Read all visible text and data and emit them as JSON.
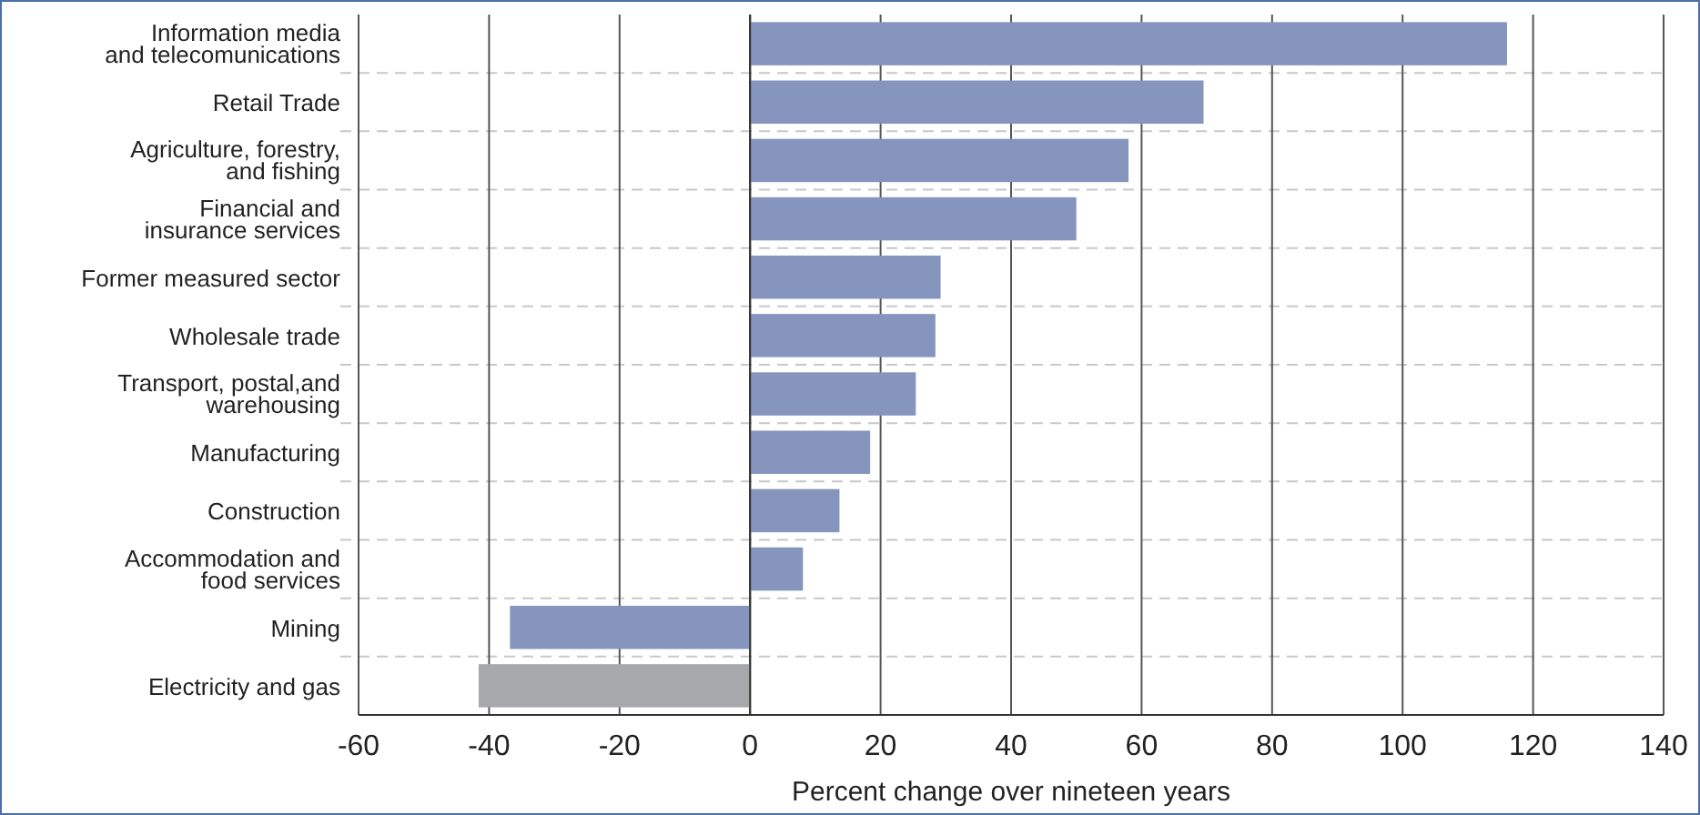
{
  "chart_data": {
    "type": "bar",
    "orientation": "horizontal",
    "xlabel": "Percent change over nineteen years",
    "categories": [
      "Information media\nand telecomunications",
      "Retail Trade",
      "Agriculture, forestry,\nand fishing",
      "Financial and\ninsurance services",
      "Former measured sector",
      "Wholesale trade",
      "Transport, postal,and\nwarehousing",
      "Manufacturing",
      "Construction",
      "Accommodation and\nfood services",
      "Mining",
      "Electricity and gas"
    ],
    "values": [
      116,
      69.5,
      58,
      50,
      29.2,
      28.4,
      25.4,
      18.4,
      13.7,
      8.1,
      -36.8,
      -41.6
    ],
    "colors": [
      "#8595bd",
      "#8595bd",
      "#8595bd",
      "#8595bd",
      "#8595bd",
      "#8595bd",
      "#8595bd",
      "#8595bd",
      "#8595bd",
      "#8595bd",
      "#8595bd",
      "#a7a8ab"
    ],
    "xlim": [
      -60,
      140
    ],
    "xticks": [
      -60,
      -40,
      -20,
      0,
      20,
      40,
      60,
      80,
      100,
      120,
      140
    ],
    "grid": true
  }
}
